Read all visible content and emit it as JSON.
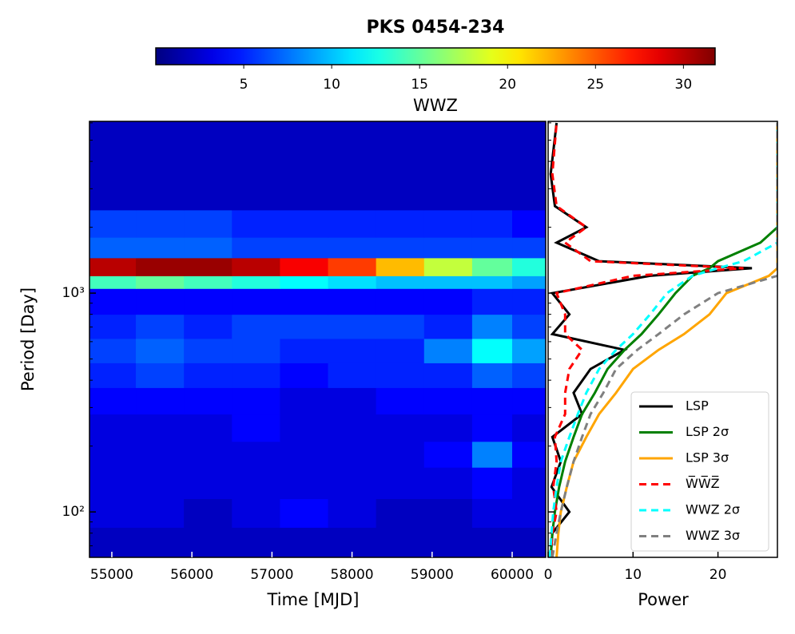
{
  "chart_data": [
    {
      "type": "heatmap",
      "title": "PKS 0454-234",
      "colorbar_label": "WWZ",
      "colormap": "jet",
      "clim": [
        0,
        31.8
      ],
      "cticks": [
        5,
        10,
        15,
        20,
        25,
        30
      ],
      "xlabel": "Time [MJD]",
      "ylabel": "Period [Day]",
      "log_y": true,
      "xlim": [
        54721,
        60419
      ],
      "ylim": [
        62,
        6095
      ],
      "xticks": [
        55000,
        56000,
        57000,
        58000,
        59000,
        60000
      ],
      "yticks": [
        {
          "value": 100,
          "label": "10²"
        },
        {
          "value": 1000,
          "label": "10³"
        }
      ],
      "time_edges": [
        54721,
        55300,
        55900,
        56500,
        57100,
        57700,
        58300,
        58900,
        59500,
        60000,
        60419
      ],
      "period_edges": [
        62,
        85,
        115,
        160,
        210,
        280,
        370,
        480,
        620,
        800,
        1050,
        1200,
        1450,
        1800,
        2400,
        6095
      ],
      "z": [
        [
          2,
          2,
          2,
          2,
          2,
          2,
          2,
          2,
          2,
          2
        ],
        [
          3,
          3,
          2,
          3,
          4,
          3,
          2,
          2,
          3,
          3
        ],
        [
          3,
          3,
          3,
          3,
          3,
          3,
          3,
          3,
          4,
          3
        ],
        [
          3,
          3,
          3,
          3,
          3,
          3,
          3,
          4,
          8,
          4
        ],
        [
          3,
          3,
          3,
          4,
          3,
          3,
          3,
          3,
          4,
          3
        ],
        [
          4,
          4,
          4,
          4,
          3,
          3,
          4,
          4,
          4,
          4
        ],
        [
          5,
          6,
          5,
          5,
          4,
          5,
          5,
          5,
          7,
          6
        ],
        [
          6,
          7,
          6,
          6,
          5,
          5,
          5,
          8,
          12,
          9
        ],
        [
          5,
          6,
          5,
          6,
          6,
          6,
          6,
          5,
          8,
          6
        ],
        [
          4,
          4,
          4,
          4,
          4,
          4,
          4,
          4,
          5,
          5
        ],
        [
          14,
          15,
          14,
          13,
          12,
          11,
          10,
          10,
          10,
          9
        ],
        [
          30,
          31,
          31,
          30,
          28,
          26,
          22,
          18,
          15,
          13
        ],
        [
          7,
          7,
          7,
          6,
          6,
          6,
          6,
          6,
          6,
          6
        ],
        [
          6,
          6,
          6,
          5,
          5,
          5,
          5,
          5,
          5,
          4
        ],
        [
          2,
          2,
          2,
          2,
          2,
          2,
          2,
          2,
          2,
          2
        ]
      ]
    },
    {
      "type": "line",
      "xlabel": "Power",
      "xlim": [
        0,
        27
      ],
      "xticks": [
        0,
        10,
        20
      ],
      "ylim": [
        62,
        6095
      ],
      "log_y": true,
      "periods": [
        62,
        80,
        100,
        130,
        170,
        220,
        280,
        350,
        450,
        550,
        650,
        800,
        1000,
        1200,
        1300,
        1400,
        1700,
        2000,
        2500,
        3500,
        6000
      ],
      "series": [
        {
          "name": "LSP",
          "color": "#000000",
          "dash": "none",
          "values": [
            0.3,
            0.5,
            2.5,
            0.4,
            1.5,
            0.5,
            4,
            3,
            5,
            9,
            0.5,
            2.5,
            0.5,
            12,
            24,
            6,
            1,
            4.5,
            0.8,
            0.3,
            1
          ]
        },
        {
          "name": "LSP 2σ",
          "color": "#008000",
          "dash": "none",
          "values": [
            0.3,
            0.5,
            0.8,
            1.3,
            2,
            3,
            4,
            5.5,
            7,
            9,
            11,
            13,
            15,
            17,
            19,
            20,
            25,
            27,
            27,
            27,
            27
          ]
        },
        {
          "name": "LSP 3σ",
          "color": "#ffa500",
          "dash": "none",
          "values": [
            1,
            1.2,
            1.5,
            2.2,
            3,
            4.5,
            6,
            8,
            10,
            13,
            16,
            19,
            21,
            26,
            27,
            27,
            27,
            27,
            27,
            27,
            27
          ]
        },
        {
          "name": "W̅W̅Z̅",
          "color": "#ff0000",
          "dash": "9,6",
          "values": [
            0.3,
            0.5,
            1,
            0.6,
            1,
            0.8,
            2,
            2,
            2.5,
            4,
            2,
            2,
            1,
            10,
            23,
            5,
            2,
            4.5,
            1,
            0.5,
            1
          ]
        },
        {
          "name": "WWZ 2σ",
          "color": "#00ffff",
          "dash": "9,6",
          "values": [
            0.2,
            0.4,
            0.6,
            1,
            1.5,
            2.5,
            3.5,
            4.5,
            6,
            8,
            10,
            12,
            14,
            17,
            20,
            23,
            27,
            27,
            27,
            27,
            27
          ]
        },
        {
          "name": "WWZ 3σ",
          "color": "#808080",
          "dash": "9,6",
          "values": [
            0.5,
            1,
            1.5,
            2.2,
            3,
            4,
            5,
            6.5,
            8,
            10.5,
            13,
            16,
            20,
            27,
            27,
            27,
            27,
            27,
            27,
            27,
            27
          ]
        }
      ]
    }
  ]
}
